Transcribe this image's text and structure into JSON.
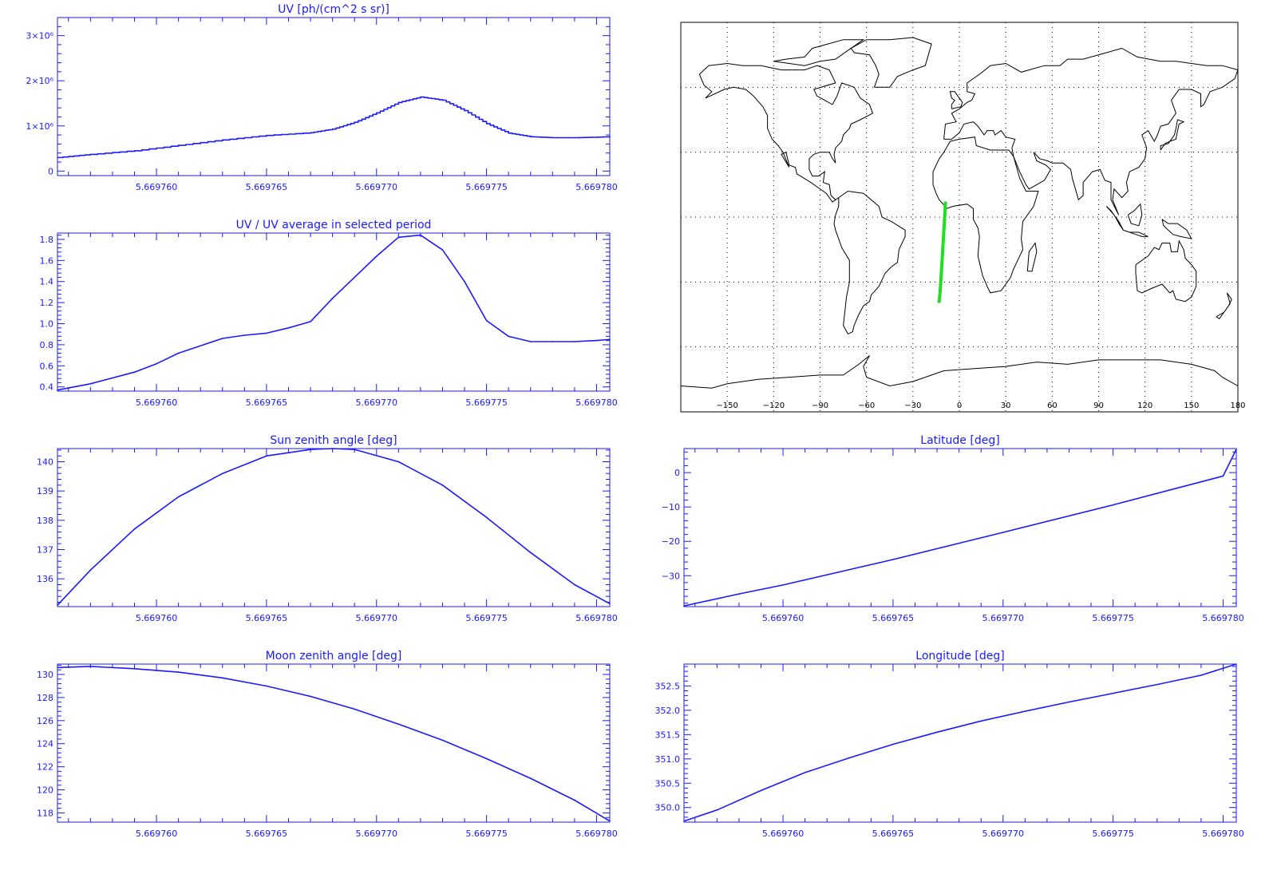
{
  "colors": {
    "axis": "#1a1aff",
    "series": "#1a1aff",
    "map_frame": "#000000",
    "coast": "#000000",
    "track": "#22dd22",
    "background": "#ffffff"
  },
  "chart_data": [
    {
      "id": "uv",
      "type": "line",
      "title": "UV [ph/(cm^2 s sr)]",
      "xlabel": "",
      "ylabel": "",
      "xlim": [
        5.6697555,
        5.6697806
      ],
      "ylim": [
        -100000,
        3400000
      ],
      "xticks": [
        5.66976,
        5.669765,
        5.66977,
        5.669775,
        5.66978
      ],
      "xtick_labels": [
        "5.669760",
        "5.669765",
        "5.669770",
        "5.669775",
        "5.669780"
      ],
      "yticks": [
        0,
        1000000,
        2000000,
        3000000
      ],
      "ytick_labels": [
        "0",
        "1×10⁶",
        "2×10⁶",
        "3×10⁶"
      ],
      "grid": false,
      "x": [
        5.6697555,
        5.669757,
        5.669759,
        5.669761,
        5.669763,
        5.669765,
        5.669767,
        5.669768,
        5.669769,
        5.66977,
        5.669771,
        5.669772,
        5.669773,
        5.669774,
        5.669775,
        5.669776,
        5.669777,
        5.669778,
        5.669779,
        5.66978,
        5.6697806
      ],
      "values": [
        300000,
        370000,
        450000,
        570000,
        690000,
        790000,
        850000,
        930000,
        1080000,
        1290000,
        1520000,
        1640000,
        1570000,
        1340000,
        1050000,
        840000,
        760000,
        740000,
        740000,
        750000,
        760000
      ]
    },
    {
      "id": "uv_ratio",
      "type": "line",
      "title": "UV / UV average in selected period",
      "xlabel": "",
      "ylabel": "",
      "xlim": [
        5.6697555,
        5.6697806
      ],
      "ylim": [
        0.36,
        1.86
      ],
      "xticks": [
        5.66976,
        5.669765,
        5.66977,
        5.669775,
        5.66978
      ],
      "xtick_labels": [
        "5.669760",
        "5.669765",
        "5.669770",
        "5.669775",
        "5.669780"
      ],
      "yticks": [
        0.4,
        0.6,
        0.8,
        1.0,
        1.2,
        1.4,
        1.6,
        1.8
      ],
      "ytick_labels": [
        "0.4",
        "0.6",
        "0.8",
        "1.0",
        "1.2",
        "1.4",
        "1.6",
        "1.8"
      ],
      "grid": false,
      "x": [
        5.6697555,
        5.669757,
        5.669759,
        5.66976,
        5.669761,
        5.669762,
        5.669763,
        5.669764,
        5.669765,
        5.669766,
        5.669767,
        5.669768,
        5.669769,
        5.66977,
        5.669771,
        5.669772,
        5.669773,
        5.669774,
        5.669775,
        5.669776,
        5.669777,
        5.669778,
        5.669779,
        5.66978,
        5.6697806
      ],
      "values": [
        0.37,
        0.43,
        0.54,
        0.62,
        0.72,
        0.79,
        0.86,
        0.89,
        0.91,
        0.96,
        1.02,
        1.24,
        1.44,
        1.64,
        1.82,
        1.84,
        1.7,
        1.4,
        1.03,
        0.88,
        0.83,
        0.83,
        0.83,
        0.84,
        0.85
      ]
    },
    {
      "id": "sun_zenith",
      "type": "line",
      "title": "Sun zenith angle [deg]",
      "xlabel": "",
      "ylabel": "",
      "xlim": [
        5.6697555,
        5.6697806
      ],
      "ylim": [
        135.05,
        140.45
      ],
      "xticks": [
        5.66976,
        5.669765,
        5.66977,
        5.669775,
        5.66978
      ],
      "xtick_labels": [
        "5.669760",
        "5.669765",
        "5.669770",
        "5.669775",
        "5.669780"
      ],
      "yticks": [
        136,
        137,
        138,
        139,
        140
      ],
      "ytick_labels": [
        "136",
        "137",
        "138",
        "139",
        "140"
      ],
      "grid": false,
      "x": [
        5.6697555,
        5.669757,
        5.669759,
        5.669761,
        5.669763,
        5.669765,
        5.669767,
        5.669768,
        5.669769,
        5.669771,
        5.669773,
        5.669775,
        5.669777,
        5.669779,
        5.6697806
      ],
      "values": [
        135.1,
        136.3,
        137.7,
        138.8,
        139.6,
        140.2,
        140.42,
        140.45,
        140.42,
        140.0,
        139.2,
        138.1,
        136.9,
        135.8,
        135.15
      ]
    },
    {
      "id": "moon_zenith",
      "type": "line",
      "title": "Moon zenith angle [deg]",
      "xlabel": "",
      "ylabel": "",
      "xlim": [
        5.6697555,
        5.6697806
      ],
      "ylim": [
        117.2,
        130.9
      ],
      "xticks": [
        5.66976,
        5.669765,
        5.66977,
        5.669775,
        5.66978
      ],
      "xtick_labels": [
        "5.669760",
        "5.669765",
        "5.669770",
        "5.669775",
        "5.669780"
      ],
      "yticks": [
        118,
        120,
        122,
        124,
        126,
        128,
        130
      ],
      "ytick_labels": [
        "118",
        "120",
        "122",
        "124",
        "126",
        "128",
        "130"
      ],
      "grid": false,
      "x": [
        5.6697555,
        5.669757,
        5.669759,
        5.669761,
        5.669763,
        5.669765,
        5.669767,
        5.669769,
        5.669771,
        5.669773,
        5.669775,
        5.669777,
        5.669779,
        5.6697806
      ],
      "values": [
        130.6,
        130.7,
        130.5,
        130.2,
        129.7,
        129.0,
        128.1,
        127.0,
        125.7,
        124.3,
        122.7,
        121.0,
        119.1,
        117.3
      ]
    },
    {
      "id": "latitude",
      "type": "line",
      "title": "Latitude [deg]",
      "xlabel": "",
      "ylabel": "",
      "xlim": [
        5.6697555,
        5.6697806
      ],
      "ylim": [
        -39,
        7
      ],
      "xticks": [
        5.66976,
        5.669765,
        5.66977,
        5.669775,
        5.66978
      ],
      "xtick_labels": [
        "5.669760",
        "5.669765",
        "5.669770",
        "5.669775",
        "5.669780"
      ],
      "yticks": [
        -30,
        -20,
        -10,
        0
      ],
      "ytick_labels": [
        "−30",
        "−20",
        "−10",
        "0"
      ],
      "grid": false,
      "x": [
        5.6697555,
        5.669758,
        5.66976,
        5.669765,
        5.66977,
        5.669775,
        5.66978,
        5.6697806
      ],
      "values": [
        -38.8,
        -35.3,
        -32.7,
        -25.3,
        -17.4,
        -9.4,
        -1.0,
        6.8
      ]
    },
    {
      "id": "longitude",
      "type": "line",
      "title": "Longitude [deg]",
      "xlabel": "",
      "ylabel": "",
      "xlim": [
        5.6697555,
        5.6697806
      ],
      "ylim": [
        349.7,
        352.95
      ],
      "xticks": [
        5.66976,
        5.669765,
        5.66977,
        5.669775,
        5.66978
      ],
      "xtick_labels": [
        "5.669760",
        "5.669765",
        "5.669770",
        "5.669775",
        "5.669780"
      ],
      "yticks": [
        350.0,
        350.5,
        351.0,
        351.5,
        352.0,
        352.5
      ],
      "ytick_labels": [
        "350.0",
        "350.5",
        "351.0",
        "351.5",
        "352.0",
        "352.5"
      ],
      "grid": false,
      "x": [
        5.6697555,
        5.669757,
        5.669759,
        5.669761,
        5.669763,
        5.669765,
        5.669767,
        5.669769,
        5.669771,
        5.669773,
        5.669775,
        5.669777,
        5.669779,
        5.6697806
      ],
      "values": [
        349.72,
        349.95,
        350.35,
        350.72,
        351.02,
        351.3,
        351.55,
        351.78,
        351.98,
        352.17,
        352.35,
        352.53,
        352.72,
        352.95
      ]
    },
    {
      "id": "map",
      "type": "scatter",
      "title": "",
      "xlim": [
        -180,
        180
      ],
      "ylim": [
        -90,
        90
      ],
      "xticks": [
        -150,
        -120,
        -90,
        -60,
        -30,
        0,
        30,
        60,
        90,
        120,
        150,
        180
      ],
      "xtick_labels": [
        "−150",
        "−120",
        "−90",
        "−60",
        "−30",
        "0",
        "30",
        "60",
        "90",
        "120",
        "150",
        "180"
      ],
      "grid": true,
      "series": [
        {
          "x": [
            -9.0,
            -9.4,
            -9.9,
            -10.4,
            -10.9,
            -11.4,
            -11.9,
            -12.4,
            -13.0
          ],
          "y": [
            6.5,
            1.0,
            -5.0,
            -11.0,
            -17.0,
            -23.0,
            -29.0,
            -34.0,
            -39.0
          ]
        }
      ]
    }
  ]
}
